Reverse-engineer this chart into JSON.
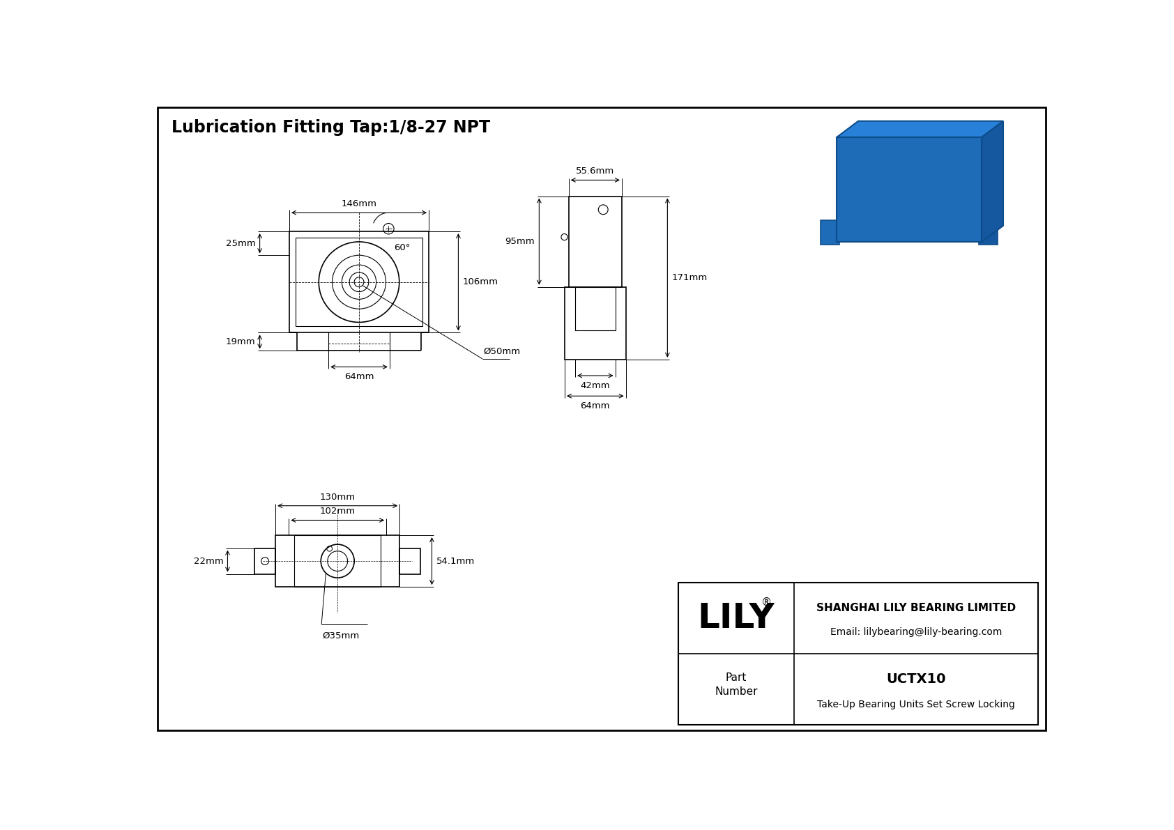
{
  "title": "Lubrication Fitting Tap:1/8-27 NPT",
  "line_color": "#000000",
  "dim_color": "#000000",
  "title_fontsize": 17,
  "dim_fontsize": 9.5,
  "title_block": {
    "company": "SHANGHAI LILY BEARING LIMITED",
    "email": "Email: lilybearing@lily-bearing.com",
    "lily_text": "LILY",
    "part_label": "Part\nNumber",
    "part_number": "UCTX10",
    "part_desc": "Take-Up Bearing Units Set Screw Locking"
  },
  "dimensions_front": {
    "top_width_label": "146mm",
    "left_height_label": "25mm",
    "left_height2_label": "19mm",
    "right_height_label": "106mm",
    "bottom_slot_label": "64mm",
    "bore_label": "Ø50mm",
    "angle_label": "60°"
  },
  "dimensions_side": {
    "top_width_label": "55.6mm",
    "left_height_label": "95mm",
    "right_height_label": "171mm",
    "bottom_w1_label": "42mm",
    "bottom_w2_label": "64mm"
  },
  "dimensions_bottom": {
    "top_width1_label": "130mm",
    "top_width2_label": "102mm",
    "right_height_label": "54.1mm",
    "left_height_label": "22mm",
    "bore_label": "Ø35mm"
  }
}
